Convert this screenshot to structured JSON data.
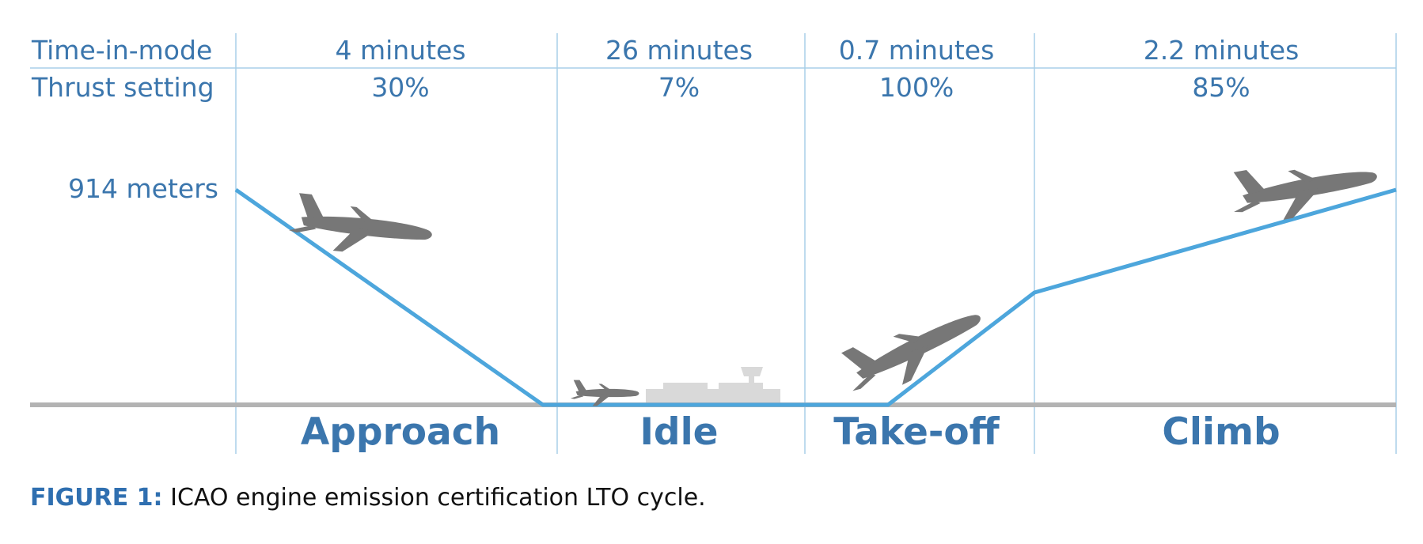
{
  "rows": {
    "time_label": "Time-in-mode",
    "thrust_label": "Thrust setting"
  },
  "altitude_label": "914 meters",
  "phases": [
    {
      "name": "Approach",
      "time": "4 minutes",
      "thrust": "30%"
    },
    {
      "name": "Idle",
      "time": "26 minutes",
      "thrust": "7%"
    },
    {
      "name": "Take-off",
      "time": "0.7 minutes",
      "thrust": "100%"
    },
    {
      "name": "Climb",
      "time": "2.2 minutes",
      "thrust": "85%"
    }
  ],
  "caption": {
    "prefix": "FIGURE 1:",
    "text": " ICAO engine emission certification LTO cycle."
  },
  "colors": {
    "path": "#4da6dc",
    "label": "#3b76ad",
    "ground": "#b3b3b3",
    "divider": "#a8cfe8",
    "aircraft": "#777777",
    "terminal": "#d9d9d9"
  },
  "icons": [
    "aircraft-approach-icon",
    "aircraft-taxi-icon",
    "airport-terminal-icon",
    "aircraft-takeoff-icon",
    "aircraft-climb-icon"
  ]
}
